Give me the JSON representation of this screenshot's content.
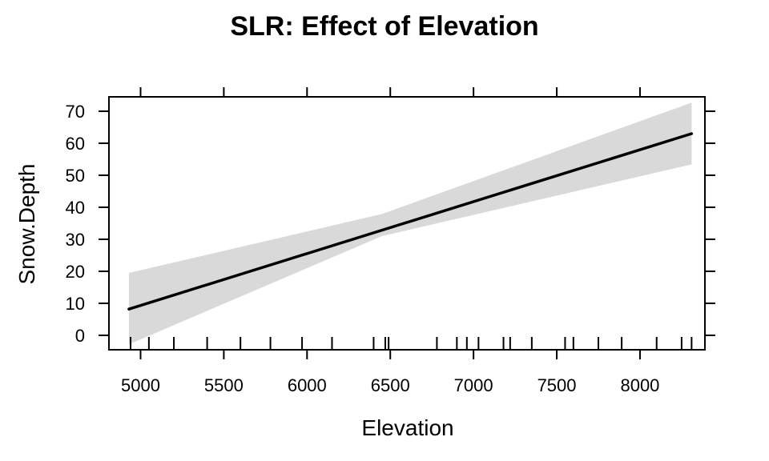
{
  "chart_data": {
    "type": "line",
    "title": "SLR: Effect of Elevation",
    "xlabel": "Elevation",
    "ylabel": "Snow.Depth",
    "xlim": [
      4810,
      8390
    ],
    "ylim": [
      -4.5,
      74.5
    ],
    "x_ticks": [
      5000,
      5500,
      6000,
      6500,
      7000,
      7500,
      8000
    ],
    "y_ticks": [
      0,
      10,
      20,
      30,
      40,
      50,
      60,
      70
    ],
    "series": [
      {
        "x": [
          4930,
          8310
        ],
        "y": [
          8.2,
          63.0
        ],
        "band_lower": [
          -2.8,
          53.4
        ],
        "band_upper": [
          19.5,
          72.7
        ],
        "band_mid_x": 6450,
        "band_mid_lower": 31.0,
        "band_mid_upper": 37.9
      }
    ],
    "rug_x": [
      4940,
      5050,
      5200,
      5400,
      5600,
      5780,
      5970,
      6150,
      6400,
      6470,
      6490,
      6780,
      6900,
      6960,
      7030,
      7180,
      7220,
      7350,
      7550,
      7600,
      7750,
      7890,
      8100,
      8250,
      8310
    ],
    "grid": false,
    "band_color": "#d9d9d9",
    "line_color": "#000000"
  }
}
